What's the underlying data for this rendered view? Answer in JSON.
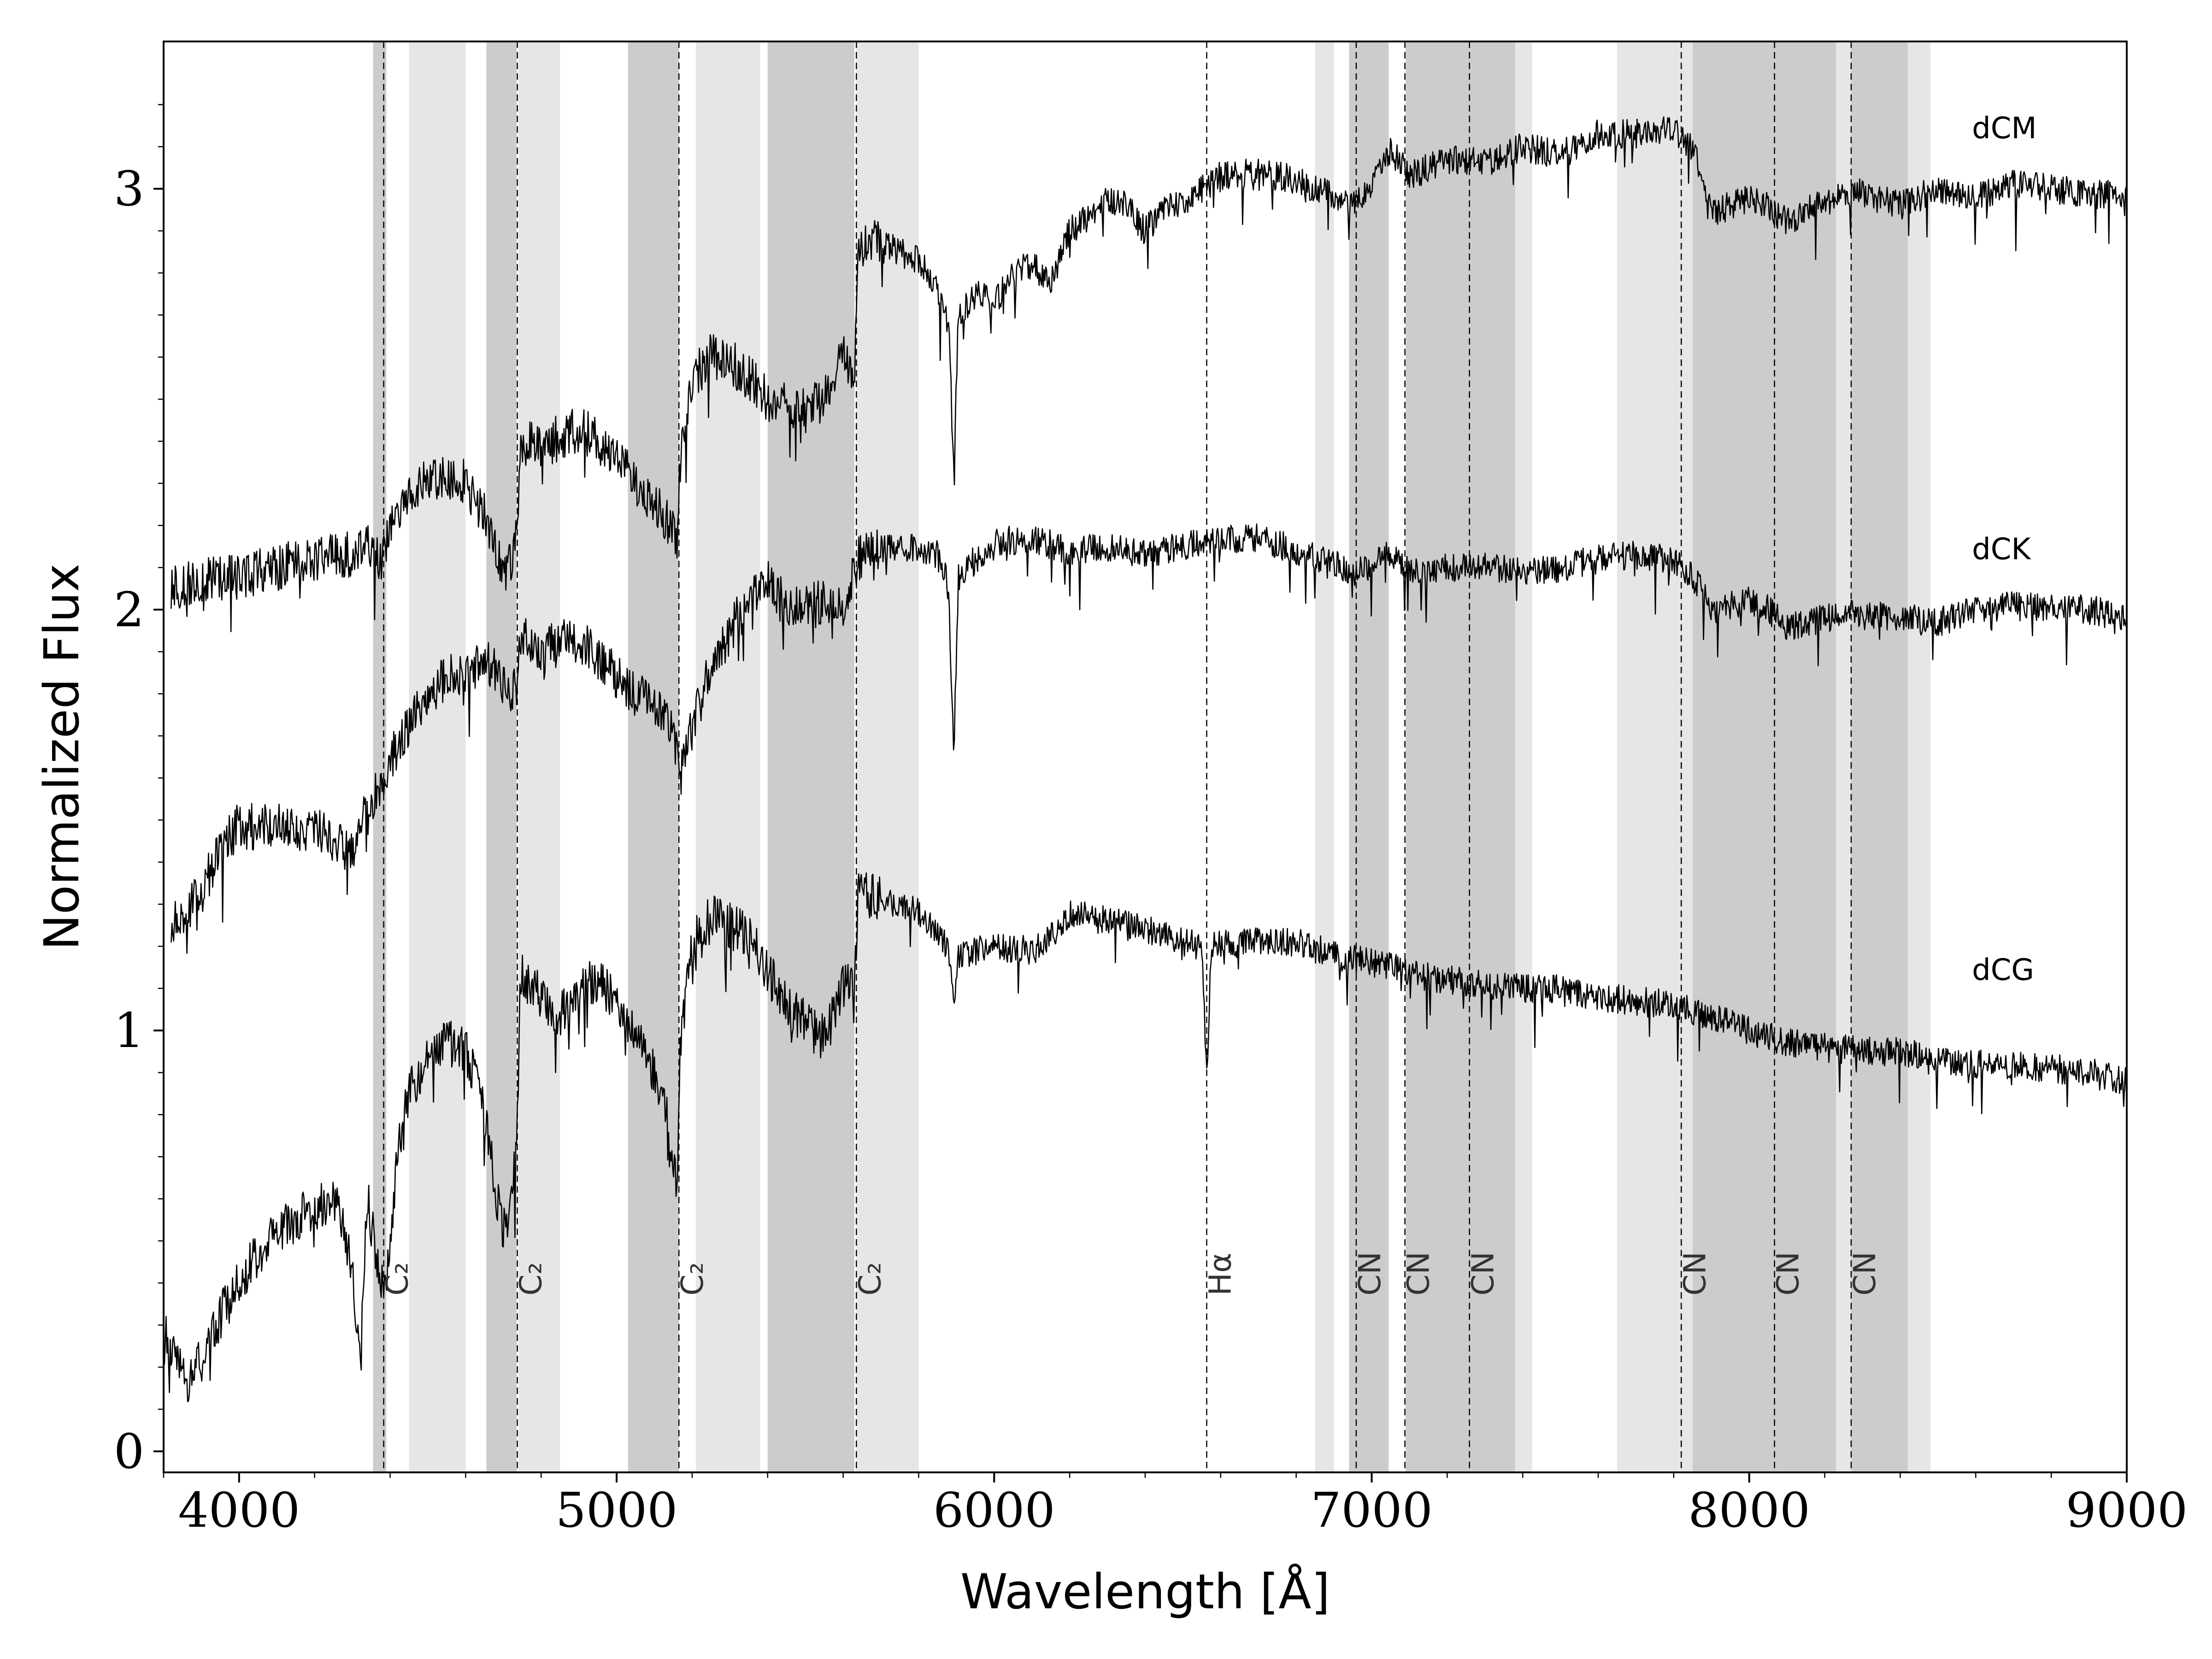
{
  "chart_data": {
    "type": "line",
    "title": "",
    "xlabel": "Wavelength [Å]",
    "ylabel": "Normalized Flux",
    "xlim": [
      3800,
      9000
    ],
    "ylim": [
      -0.05,
      3.35
    ],
    "xticks": [
      4000,
      5000,
      6000,
      7000,
      8000,
      9000
    ],
    "yticks": [
      0,
      1,
      2,
      3
    ],
    "grid": false,
    "band_colors": {
      "dark": "#cccccc",
      "light": "#e6e6e6"
    },
    "line_color": "#000000",
    "shaded_bands": [
      {
        "x0": 4355,
        "x1": 4390,
        "shade": "dark"
      },
      {
        "x0": 4450,
        "x1": 4600,
        "shade": "light"
      },
      {
        "x0": 4655,
        "x1": 4735,
        "shade": "dark"
      },
      {
        "x0": 4740,
        "x1": 4850,
        "shade": "light"
      },
      {
        "x0": 5030,
        "x1": 5165,
        "shade": "dark"
      },
      {
        "x0": 5210,
        "x1": 5380,
        "shade": "light"
      },
      {
        "x0": 5400,
        "x1": 5630,
        "shade": "dark"
      },
      {
        "x0": 5635,
        "x1": 5800,
        "shade": "light"
      },
      {
        "x0": 6850,
        "x1": 6900,
        "shade": "light"
      },
      {
        "x0": 6940,
        "x1": 7045,
        "shade": "dark"
      },
      {
        "x0": 7090,
        "x1": 7380,
        "shade": "dark"
      },
      {
        "x0": 7380,
        "x1": 7425,
        "shade": "light"
      },
      {
        "x0": 7650,
        "x1": 7850,
        "shade": "light"
      },
      {
        "x0": 7850,
        "x1": 8060,
        "shade": "dark"
      },
      {
        "x0": 8060,
        "x1": 8230,
        "shade": "dark"
      },
      {
        "x0": 8230,
        "x1": 8270,
        "shade": "light"
      },
      {
        "x0": 8270,
        "x1": 8420,
        "shade": "dark"
      },
      {
        "x0": 8420,
        "x1": 8480,
        "shade": "light"
      }
    ],
    "feature_lines": [
      {
        "x": 4383,
        "label": "C₂"
      },
      {
        "x": 4737,
        "label": "C₂"
      },
      {
        "x": 5165,
        "label": "C₂"
      },
      {
        "x": 5635,
        "label": "C₂"
      },
      {
        "x": 6563,
        "label": "Hα"
      },
      {
        "x": 6959,
        "label": "CN"
      },
      {
        "x": 7088,
        "label": "CN"
      },
      {
        "x": 7259,
        "label": "CN"
      },
      {
        "x": 7820,
        "label": "CN"
      },
      {
        "x": 8067,
        "label": "CN"
      },
      {
        "x": 8270,
        "label": "CN"
      }
    ],
    "series": [
      {
        "name": "dCM",
        "label_position": [
          8590,
          3.12
        ],
        "points": [
          [
            3820,
            2.05
          ],
          [
            3900,
            2.07
          ],
          [
            4000,
            2.08
          ],
          [
            4100,
            2.1
          ],
          [
            4200,
            2.12
          ],
          [
            4300,
            2.13
          ],
          [
            4350,
            2.15
          ],
          [
            4375,
            2.11
          ],
          [
            4390,
            2.15
          ],
          [
            4420,
            2.23
          ],
          [
            4450,
            2.29
          ],
          [
            4500,
            2.31
          ],
          [
            4550,
            2.32
          ],
          [
            4600,
            2.3
          ],
          [
            4650,
            2.22
          ],
          [
            4680,
            2.14
          ],
          [
            4700,
            2.08
          ],
          [
            4720,
            2.12
          ],
          [
            4735,
            2.18
          ],
          [
            4745,
            2.36
          ],
          [
            4760,
            2.4
          ],
          [
            4800,
            2.39
          ],
          [
            4850,
            2.41
          ],
          [
            4900,
            2.43
          ],
          [
            4950,
            2.4
          ],
          [
            5000,
            2.36
          ],
          [
            5050,
            2.3
          ],
          [
            5100,
            2.25
          ],
          [
            5140,
            2.2
          ],
          [
            5160,
            2.17
          ],
          [
            5168,
            2.34
          ],
          [
            5200,
            2.55
          ],
          [
            5250,
            2.6
          ],
          [
            5300,
            2.59
          ],
          [
            5350,
            2.55
          ],
          [
            5400,
            2.5
          ],
          [
            5450,
            2.49
          ],
          [
            5500,
            2.47
          ],
          [
            5550,
            2.5
          ],
          [
            5600,
            2.6
          ],
          [
            5630,
            2.57
          ],
          [
            5640,
            2.85
          ],
          [
            5700,
            2.88
          ],
          [
            5750,
            2.85
          ],
          [
            5800,
            2.83
          ],
          [
            5850,
            2.76
          ],
          [
            5880,
            2.68
          ],
          [
            5893,
            2.32
          ],
          [
            5905,
            2.7
          ],
          [
            5950,
            2.75
          ],
          [
            6000,
            2.73
          ],
          [
            6050,
            2.8
          ],
          [
            6100,
            2.82
          ],
          [
            6150,
            2.78
          ],
          [
            6200,
            2.9
          ],
          [
            6250,
            2.93
          ],
          [
            6300,
            2.97
          ],
          [
            6350,
            2.96
          ],
          [
            6400,
            2.9
          ],
          [
            6450,
            2.95
          ],
          [
            6500,
            2.97
          ],
          [
            6550,
            3.0
          ],
          [
            6600,
            3.03
          ],
          [
            6700,
            3.04
          ],
          [
            6800,
            3.02
          ],
          [
            6900,
            2.98
          ],
          [
            6950,
            2.96
          ],
          [
            7000,
            3.01
          ],
          [
            7050,
            3.09
          ],
          [
            7100,
            3.03
          ],
          [
            7200,
            3.07
          ],
          [
            7300,
            3.06
          ],
          [
            7400,
            3.1
          ],
          [
            7500,
            3.08
          ],
          [
            7600,
            3.13
          ],
          [
            7700,
            3.13
          ],
          [
            7800,
            3.14
          ],
          [
            7850,
            3.1
          ],
          [
            7900,
            2.94
          ],
          [
            8000,
            2.98
          ],
          [
            8050,
            2.96
          ],
          [
            8100,
            2.92
          ],
          [
            8200,
            2.97
          ],
          [
            8300,
            2.99
          ],
          [
            8400,
            2.96
          ],
          [
            8500,
            3.0
          ],
          [
            8600,
            2.98
          ],
          [
            8700,
            3.01
          ],
          [
            8800,
            3.0
          ],
          [
            8900,
            2.99
          ],
          [
            9000,
            2.98
          ]
        ]
      },
      {
        "name": "dCK",
        "label_position": [
          8590,
          2.12
        ],
        "points": [
          [
            3820,
            1.25
          ],
          [
            3900,
            1.33
          ],
          [
            3950,
            1.43
          ],
          [
            4000,
            1.49
          ],
          [
            4050,
            1.48
          ],
          [
            4100,
            1.5
          ],
          [
            4150,
            1.47
          ],
          [
            4200,
            1.49
          ],
          [
            4250,
            1.45
          ],
          [
            4300,
            1.43
          ],
          [
            4350,
            1.55
          ],
          [
            4400,
            1.64
          ],
          [
            4450,
            1.72
          ],
          [
            4500,
            1.8
          ],
          [
            4550,
            1.84
          ],
          [
            4600,
            1.84
          ],
          [
            4650,
            1.88
          ],
          [
            4700,
            1.83
          ],
          [
            4735,
            1.8
          ],
          [
            4745,
            1.94
          ],
          [
            4800,
            1.9
          ],
          [
            4850,
            1.92
          ],
          [
            4900,
            1.93
          ],
          [
            4950,
            1.88
          ],
          [
            5000,
            1.84
          ],
          [
            5050,
            1.8
          ],
          [
            5100,
            1.78
          ],
          [
            5150,
            1.72
          ],
          [
            5168,
            1.6
          ],
          [
            5200,
            1.72
          ],
          [
            5250,
            1.86
          ],
          [
            5300,
            1.95
          ],
          [
            5350,
            2.02
          ],
          [
            5400,
            2.06
          ],
          [
            5450,
            2.01
          ],
          [
            5500,
            2.0
          ],
          [
            5550,
            2.02
          ],
          [
            5600,
            2.0
          ],
          [
            5640,
            2.12
          ],
          [
            5700,
            2.14
          ],
          [
            5800,
            2.15
          ],
          [
            5850,
            2.13
          ],
          [
            5880,
            2.05
          ],
          [
            5893,
            1.65
          ],
          [
            5905,
            2.08
          ],
          [
            6000,
            2.16
          ],
          [
            6100,
            2.17
          ],
          [
            6200,
            2.14
          ],
          [
            6300,
            2.15
          ],
          [
            6400,
            2.13
          ],
          [
            6500,
            2.15
          ],
          [
            6600,
            2.17
          ],
          [
            6700,
            2.17
          ],
          [
            6800,
            2.14
          ],
          [
            6900,
            2.11
          ],
          [
            6950,
            2.08
          ],
          [
            7000,
            2.11
          ],
          [
            7050,
            2.13
          ],
          [
            7100,
            2.09
          ],
          [
            7200,
            2.1
          ],
          [
            7300,
            2.1
          ],
          [
            7400,
            2.09
          ],
          [
            7500,
            2.1
          ],
          [
            7600,
            2.12
          ],
          [
            7700,
            2.13
          ],
          [
            7800,
            2.12
          ],
          [
            7850,
            2.08
          ],
          [
            7900,
            2.0
          ],
          [
            8000,
            2.02
          ],
          [
            8050,
            2.0
          ],
          [
            8100,
            1.96
          ],
          [
            8200,
            1.98
          ],
          [
            8300,
            1.99
          ],
          [
            8400,
            1.98
          ],
          [
            8500,
            1.97
          ],
          [
            8600,
            2.0
          ],
          [
            8700,
            2.01
          ],
          [
            8800,
            2.0
          ],
          [
            8900,
            2.0
          ],
          [
            9000,
            1.98
          ]
        ]
      },
      {
        "name": "dCG",
        "label_position": [
          8590,
          1.12
        ],
        "points": [
          [
            3800,
            0.28
          ],
          [
            3830,
            0.22
          ],
          [
            3860,
            0.16
          ],
          [
            3900,
            0.22
          ],
          [
            3950,
            0.32
          ],
          [
            4000,
            0.4
          ],
          [
            4050,
            0.47
          ],
          [
            4100,
            0.53
          ],
          [
            4150,
            0.55
          ],
          [
            4200,
            0.58
          ],
          [
            4250,
            0.6
          ],
          [
            4300,
            0.45
          ],
          [
            4320,
            0.2
          ],
          [
            4340,
            0.6
          ],
          [
            4370,
            0.42
          ],
          [
            4390,
            0.4
          ],
          [
            4420,
            0.7
          ],
          [
            4450,
            0.86
          ],
          [
            4500,
            0.93
          ],
          [
            4550,
            0.97
          ],
          [
            4600,
            0.96
          ],
          [
            4650,
            0.8
          ],
          [
            4680,
            0.62
          ],
          [
            4700,
            0.52
          ],
          [
            4720,
            0.6
          ],
          [
            4735,
            0.7
          ],
          [
            4745,
            1.14
          ],
          [
            4800,
            1.08
          ],
          [
            4850,
            1.04
          ],
          [
            4900,
            1.1
          ],
          [
            4950,
            1.12
          ],
          [
            5000,
            1.06
          ],
          [
            5050,
            0.98
          ],
          [
            5100,
            0.9
          ],
          [
            5140,
            0.78
          ],
          [
            5160,
            0.6
          ],
          [
            5168,
            0.96
          ],
          [
            5200,
            1.2
          ],
          [
            5250,
            1.27
          ],
          [
            5300,
            1.25
          ],
          [
            5350,
            1.22
          ],
          [
            5400,
            1.14
          ],
          [
            5450,
            1.06
          ],
          [
            5500,
            1.02
          ],
          [
            5550,
            0.98
          ],
          [
            5600,
            1.1
          ],
          [
            5630,
            1.12
          ],
          [
            5640,
            1.33
          ],
          [
            5700,
            1.31
          ],
          [
            5800,
            1.28
          ],
          [
            5850,
            1.24
          ],
          [
            5880,
            1.18
          ],
          [
            5893,
            1.05
          ],
          [
            5905,
            1.18
          ],
          [
            6000,
            1.2
          ],
          [
            6100,
            1.19
          ],
          [
            6150,
            1.22
          ],
          [
            6200,
            1.28
          ],
          [
            6300,
            1.26
          ],
          [
            6400,
            1.24
          ],
          [
            6500,
            1.21
          ],
          [
            6550,
            1.2
          ],
          [
            6563,
            0.88
          ],
          [
            6575,
            1.2
          ],
          [
            6700,
            1.21
          ],
          [
            6800,
            1.21
          ],
          [
            6900,
            1.18
          ],
          [
            7000,
            1.16
          ],
          [
            7100,
            1.14
          ],
          [
            7200,
            1.12
          ],
          [
            7300,
            1.11
          ],
          [
            7400,
            1.1
          ],
          [
            7500,
            1.1
          ],
          [
            7600,
            1.08
          ],
          [
            7700,
            1.07
          ],
          [
            7800,
            1.06
          ],
          [
            7900,
            1.03
          ],
          [
            8000,
            1.0
          ],
          [
            8100,
            0.97
          ],
          [
            8200,
            0.96
          ],
          [
            8300,
            0.95
          ],
          [
            8400,
            0.95
          ],
          [
            8500,
            0.93
          ],
          [
            8600,
            0.92
          ],
          [
            8700,
            0.92
          ],
          [
            8800,
            0.91
          ],
          [
            8900,
            0.9
          ],
          [
            9000,
            0.88
          ]
        ]
      }
    ]
  }
}
